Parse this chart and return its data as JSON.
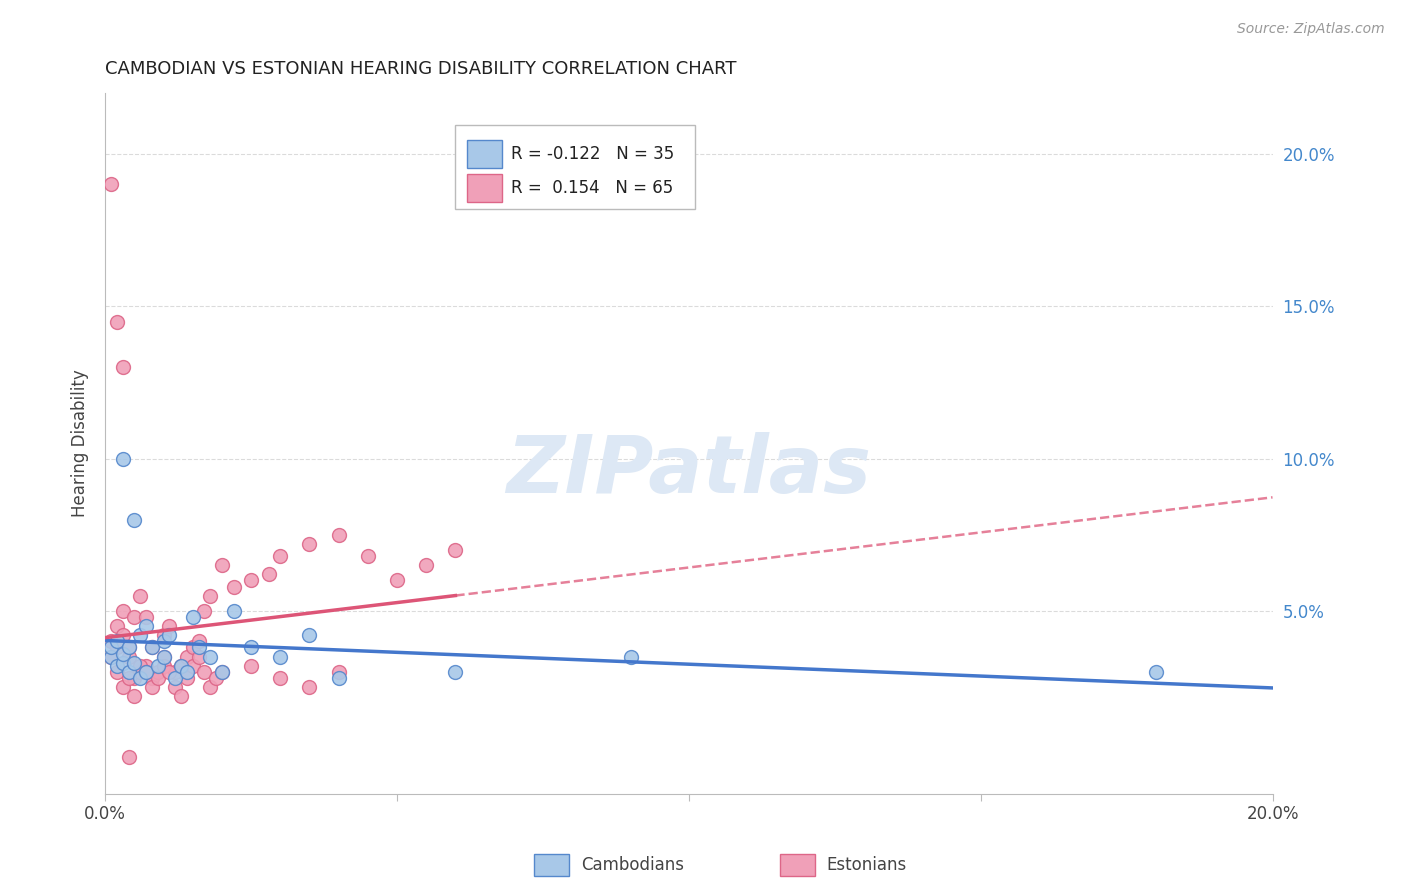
{
  "title": "CAMBODIAN VS ESTONIAN HEARING DISABILITY CORRELATION CHART",
  "source": "Source: ZipAtlas.com",
  "ylabel": "Hearing Disability",
  "xlim": [
    0.0,
    0.2
  ],
  "ylim": [
    -0.01,
    0.22
  ],
  "grid_color": "#cccccc",
  "background_color": "#ffffff",
  "cambodian_color": "#a8c8e8",
  "estonian_color": "#f0a0b8",
  "cambodian_edge_color": "#5588cc",
  "estonian_edge_color": "#dd6688",
  "cambodian_line_color": "#4477cc",
  "estonian_line_color": "#dd5577",
  "legend_R_cambodian": "-0.122",
  "legend_N_cambodian": "35",
  "legend_R_estonian": "0.154",
  "legend_N_estonian": "65",
  "watermark": "ZIPatlas",
  "watermark_color": "#dde8f5",
  "cambodians_x": [
    0.001,
    0.001,
    0.002,
    0.002,
    0.003,
    0.003,
    0.004,
    0.004,
    0.005,
    0.006,
    0.006,
    0.007,
    0.007,
    0.008,
    0.009,
    0.01,
    0.01,
    0.011,
    0.012,
    0.013,
    0.014,
    0.015,
    0.016,
    0.018,
    0.02,
    0.022,
    0.025,
    0.03,
    0.035,
    0.04,
    0.06,
    0.09,
    0.18,
    0.003,
    0.005
  ],
  "cambodians_y": [
    0.035,
    0.038,
    0.04,
    0.032,
    0.033,
    0.036,
    0.03,
    0.038,
    0.033,
    0.028,
    0.042,
    0.03,
    0.045,
    0.038,
    0.032,
    0.035,
    0.04,
    0.042,
    0.028,
    0.032,
    0.03,
    0.048,
    0.038,
    0.035,
    0.03,
    0.05,
    0.038,
    0.035,
    0.042,
    0.028,
    0.03,
    0.035,
    0.03,
    0.1,
    0.08
  ],
  "estonians_x": [
    0.001,
    0.001,
    0.002,
    0.002,
    0.003,
    0.003,
    0.004,
    0.004,
    0.005,
    0.005,
    0.006,
    0.006,
    0.007,
    0.007,
    0.008,
    0.008,
    0.009,
    0.01,
    0.01,
    0.011,
    0.012,
    0.013,
    0.014,
    0.015,
    0.016,
    0.017,
    0.018,
    0.02,
    0.022,
    0.025,
    0.028,
    0.03,
    0.035,
    0.04,
    0.045,
    0.05,
    0.055,
    0.06,
    0.002,
    0.003,
    0.004,
    0.005,
    0.006,
    0.007,
    0.008,
    0.009,
    0.01,
    0.011,
    0.012,
    0.013,
    0.014,
    0.015,
    0.016,
    0.017,
    0.018,
    0.019,
    0.02,
    0.025,
    0.03,
    0.035,
    0.04,
    0.001,
    0.002,
    0.003,
    0.004
  ],
  "estonians_y": [
    0.04,
    0.035,
    0.045,
    0.038,
    0.042,
    0.05,
    0.035,
    0.038,
    0.028,
    0.048,
    0.03,
    0.055,
    0.032,
    0.048,
    0.028,
    0.038,
    0.03,
    0.035,
    0.042,
    0.045,
    0.03,
    0.032,
    0.035,
    0.038,
    0.04,
    0.05,
    0.055,
    0.065,
    0.058,
    0.06,
    0.062,
    0.068,
    0.072,
    0.075,
    0.068,
    0.06,
    0.065,
    0.07,
    0.03,
    0.025,
    0.028,
    0.022,
    0.032,
    0.03,
    0.025,
    0.028,
    0.032,
    0.03,
    0.025,
    0.022,
    0.028,
    0.032,
    0.035,
    0.03,
    0.025,
    0.028,
    0.03,
    0.032,
    0.028,
    0.025,
    0.03,
    0.19,
    0.145,
    0.13,
    0.002
  ]
}
